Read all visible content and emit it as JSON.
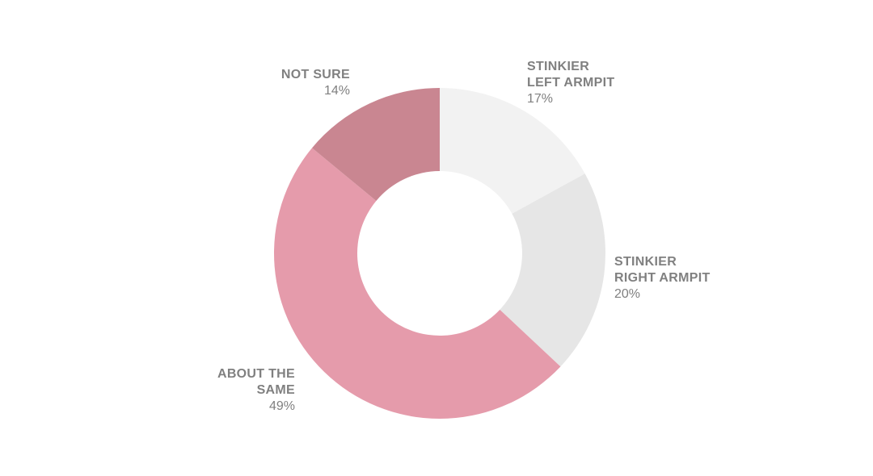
{
  "chart_data": {
    "type": "pie",
    "title": "",
    "slices": [
      {
        "label_lines": [
          "STINKIER",
          "LEFT ARMPIT"
        ],
        "value": 17,
        "value_label": "17%",
        "color": "#f2f2f2"
      },
      {
        "label_lines": [
          "STINKIER",
          "RIGHT ARMPIT"
        ],
        "value": 20,
        "value_label": "20%",
        "color": "#e6e6e6"
      },
      {
        "label_lines": [
          "ABOUT THE",
          "SAME"
        ],
        "value": 49,
        "value_label": "49%",
        "color": "#e59bab"
      },
      {
        "label_lines": [
          "NOT SURE"
        ],
        "value": 14,
        "value_label": "14%",
        "color": "#c98691"
      }
    ]
  }
}
